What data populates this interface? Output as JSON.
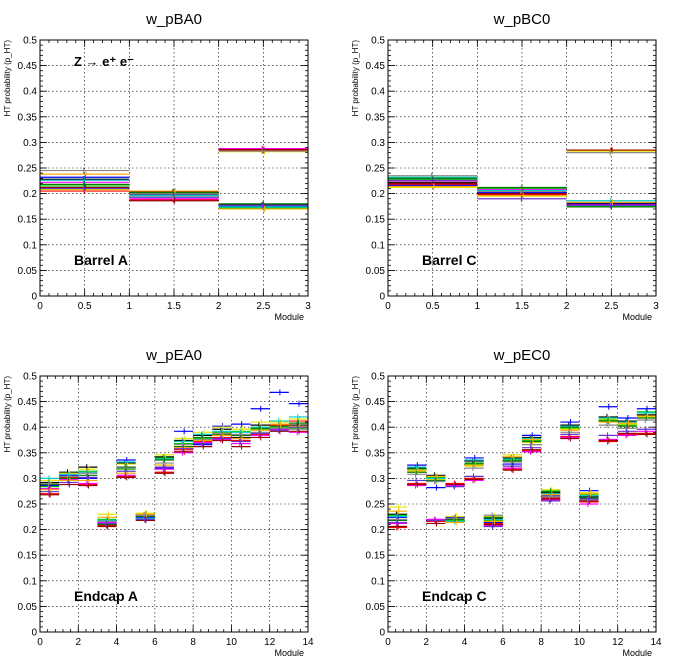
{
  "panels": [
    {
      "title": "w_pBA0",
      "region_label": "Barrel A",
      "annotation": "Z → e⁺ e⁻",
      "xlabel": "Module",
      "ylabel": "HT probability (p_HT)",
      "xlim": [
        0,
        3
      ],
      "ylim": [
        0,
        0.5
      ],
      "x_ticks": [
        0,
        0.5,
        1,
        1.5,
        2,
        2.5,
        3
      ],
      "y_ticks": [
        0,
        0.05,
        0.1,
        0.15,
        0.2,
        0.25,
        0.3,
        0.35,
        0.4,
        0.45,
        0.5
      ]
    },
    {
      "title": "w_pBC0",
      "region_label": "Barrel C",
      "annotation": "",
      "xlabel": "Module",
      "ylabel": "HT probability (p_HT)",
      "xlim": [
        0,
        3
      ],
      "ylim": [
        0,
        0.5
      ],
      "x_ticks": [
        0,
        0.5,
        1,
        1.5,
        2,
        2.5,
        3
      ],
      "y_ticks": [
        0,
        0.05,
        0.1,
        0.15,
        0.2,
        0.25,
        0.3,
        0.35,
        0.4,
        0.45,
        0.5
      ]
    },
    {
      "title": "w_pEA0",
      "region_label": "Endcap A",
      "annotation": "",
      "xlabel": "Module",
      "ylabel": "HT probability (p_HT)",
      "xlim": [
        0,
        14
      ],
      "ylim": [
        0,
        0.5
      ],
      "x_ticks": [
        0,
        2,
        4,
        6,
        8,
        10,
        12,
        14
      ],
      "y_ticks": [
        0,
        0.05,
        0.1,
        0.15,
        0.2,
        0.25,
        0.3,
        0.35,
        0.4,
        0.45,
        0.5
      ]
    },
    {
      "title": "w_pEC0",
      "region_label": "Endcap C",
      "annotation": "",
      "xlabel": "Module",
      "ylabel": "HT probability (p_HT)",
      "xlim": [
        0,
        14
      ],
      "ylim": [
        0,
        0.5
      ],
      "x_ticks": [
        0,
        2,
        4,
        6,
        8,
        10,
        12,
        14
      ],
      "y_ticks": [
        0,
        0.05,
        0.1,
        0.15,
        0.2,
        0.25,
        0.3,
        0.35,
        0.4,
        0.45,
        0.5
      ]
    }
  ],
  "series_colors": [
    "#000000",
    "#ff0000",
    "#00cc00",
    "#0000ff",
    "#e6e600",
    "#ff00ff",
    "#00cccc",
    "#007700",
    "#990000",
    "#ffaa00",
    "#888888",
    "#6633cc"
  ],
  "chart_data": [
    {
      "type": "scatter",
      "title": "w_pBA0",
      "xlabel": "Module",
      "xlim": [
        0,
        3
      ],
      "ylim": [
        0,
        0.5
      ],
      "grid": true,
      "bins": [
        0,
        1,
        2
      ],
      "series": [
        {
          "values": [
            0.228,
            0.203,
            0.178
          ]
        },
        {
          "values": [
            0.205,
            0.188,
            0.285
          ]
        },
        {
          "values": [
            0.215,
            0.198,
            0.172
          ]
        },
        {
          "values": [
            0.232,
            0.193,
            0.176
          ]
        },
        {
          "values": [
            0.208,
            0.2,
            0.282
          ]
        },
        {
          "values": [
            0.222,
            0.19,
            0.288
          ]
        },
        {
          "values": [
            0.226,
            0.196,
            0.174
          ]
        },
        {
          "values": [
            0.218,
            0.202,
            0.18
          ]
        },
        {
          "values": [
            0.212,
            0.186,
            0.286
          ]
        },
        {
          "values": [
            0.238,
            0.205,
            0.17
          ]
        },
        {
          "values": [
            0.245,
            0.194,
            0.283
          ]
        },
        {
          "values": [
            0.21,
            0.199,
            0.177
          ]
        }
      ]
    },
    {
      "type": "scatter",
      "title": "w_pBC0",
      "xlabel": "Module",
      "xlim": [
        0,
        3
      ],
      "ylim": [
        0,
        0.5
      ],
      "grid": true,
      "bins": [
        0,
        1,
        2
      ],
      "series": [
        {
          "values": [
            0.222,
            0.205,
            0.18
          ]
        },
        {
          "values": [
            0.218,
            0.198,
            0.284
          ]
        },
        {
          "values": [
            0.228,
            0.21,
            0.176
          ]
        },
        {
          "values": [
            0.216,
            0.202,
            0.182
          ]
        },
        {
          "values": [
            0.212,
            0.195,
            0.283
          ]
        },
        {
          "values": [
            0.225,
            0.208,
            0.178
          ]
        },
        {
          "values": [
            0.232,
            0.206,
            0.186
          ]
        },
        {
          "values": [
            0.23,
            0.212,
            0.174
          ]
        },
        {
          "values": [
            0.22,
            0.2,
            0.285
          ]
        },
        {
          "values": [
            0.214,
            0.196,
            0.183
          ]
        },
        {
          "values": [
            0.235,
            0.204,
            0.28
          ]
        },
        {
          "values": [
            0.226,
            0.19,
            0.177
          ]
        }
      ]
    },
    {
      "type": "scatter",
      "title": "w_pEA0",
      "xlabel": "Module",
      "xlim": [
        0,
        14
      ],
      "ylim": [
        0,
        0.5
      ],
      "grid": true,
      "bins": [
        0,
        1,
        2,
        3,
        4,
        5,
        6,
        7,
        8,
        9,
        10,
        11,
        12,
        13
      ],
      "series": [
        {
          "values": [
            0.292,
            0.312,
            0.322,
            0.212,
            0.33,
            0.228,
            0.342,
            0.374,
            0.384,
            0.396,
            0.38,
            0.404,
            0.396,
            0.404
          ]
        },
        {
          "values": [
            0.27,
            0.302,
            0.288,
            0.208,
            0.304,
            0.22,
            0.312,
            0.356,
            0.372,
            0.38,
            0.374,
            0.386,
            0.404,
            0.412
          ]
        },
        {
          "values": [
            0.284,
            0.304,
            0.314,
            0.22,
            0.318,
            0.23,
            0.34,
            0.368,
            0.378,
            0.39,
            0.392,
            0.396,
            0.4,
            0.398
          ]
        },
        {
          "values": [
            0.286,
            0.306,
            0.3,
            0.216,
            0.336,
            0.224,
            0.32,
            0.392,
            0.366,
            0.402,
            0.406,
            0.436,
            0.468,
            0.446
          ]
        },
        {
          "values": [
            0.296,
            0.31,
            0.318,
            0.23,
            0.328,
            0.232,
            0.346,
            0.378,
            0.39,
            0.4,
            0.396,
            0.41,
            0.41,
            0.416
          ]
        },
        {
          "values": [
            0.28,
            0.298,
            0.29,
            0.214,
            0.306,
            0.226,
            0.318,
            0.35,
            0.37,
            0.376,
            0.368,
            0.384,
            0.396,
            0.39
          ]
        },
        {
          "values": [
            0.3,
            0.308,
            0.312,
            0.218,
            0.332,
            0.222,
            0.338,
            0.372,
            0.386,
            0.392,
            0.39,
            0.4,
            0.412,
            0.42
          ]
        },
        {
          "values": [
            0.288,
            0.3,
            0.306,
            0.21,
            0.322,
            0.226,
            0.336,
            0.362,
            0.38,
            0.386,
            0.384,
            0.398,
            0.402,
            0.408
          ]
        },
        {
          "values": [
            0.268,
            0.288,
            0.286,
            0.206,
            0.302,
            0.218,
            0.31,
            0.352,
            0.362,
            0.374,
            0.362,
            0.38,
            0.392,
            0.392
          ]
        },
        {
          "values": [
            0.278,
            0.296,
            0.296,
            0.224,
            0.31,
            0.23,
            0.326,
            0.36,
            0.374,
            0.384,
            0.378,
            0.394,
            0.406,
            0.402
          ]
        },
        {
          "values": [
            0.29,
            0.304,
            0.31,
            0.216,
            0.32,
            0.228,
            0.33,
            0.366,
            0.376,
            0.388,
            0.386,
            0.39,
            0.398,
            0.396
          ]
        },
        {
          "values": [
            0.274,
            0.292,
            0.302,
            0.212,
            0.314,
            0.22,
            0.322,
            0.358,
            0.368,
            0.378,
            0.372,
            0.388,
            0.394,
            0.4
          ]
        }
      ]
    },
    {
      "type": "scatter",
      "title": "w_pEC0",
      "xlabel": "Module",
      "xlim": [
        0,
        14
      ],
      "ylim": [
        0,
        0.5
      ],
      "grid": true,
      "bins": [
        0,
        1,
        2,
        3,
        4,
        5,
        6,
        7,
        8,
        9,
        10,
        11,
        12,
        13
      ],
      "series": [
        {
          "values": [
            0.23,
            0.32,
            0.306,
            0.222,
            0.334,
            0.222,
            0.34,
            0.38,
            0.272,
            0.404,
            0.264,
            0.42,
            0.412,
            0.424
          ]
        },
        {
          "values": [
            0.204,
            0.29,
            0.216,
            0.29,
            0.3,
            0.212,
            0.318,
            0.354,
            0.262,
            0.382,
            0.254,
            0.372,
            0.386,
            0.388
          ]
        },
        {
          "values": [
            0.228,
            0.318,
            0.302,
            0.218,
            0.328,
            0.218,
            0.336,
            0.374,
            0.276,
            0.398,
            0.268,
            0.414,
            0.404,
            0.43
          ]
        },
        {
          "values": [
            0.224,
            0.326,
            0.282,
            0.224,
            0.34,
            0.214,
            0.328,
            0.384,
            0.266,
            0.41,
            0.276,
            0.44,
            0.418,
            0.436
          ]
        },
        {
          "values": [
            0.244,
            0.314,
            0.298,
            0.226,
            0.324,
            0.226,
            0.346,
            0.37,
            0.278,
            0.396,
            0.272,
            0.416,
            0.406,
            0.42
          ]
        },
        {
          "values": [
            0.212,
            0.286,
            0.22,
            0.286,
            0.296,
            0.208,
            0.32,
            0.352,
            0.258,
            0.38,
            0.25,
            0.376,
            0.384,
            0.392
          ]
        },
        {
          "values": [
            0.226,
            0.322,
            0.3,
            0.216,
            0.336,
            0.22,
            0.338,
            0.378,
            0.27,
            0.402,
            0.266,
            0.418,
            0.41,
            0.428
          ]
        },
        {
          "values": [
            0.218,
            0.312,
            0.296,
            0.22,
            0.33,
            0.224,
            0.334,
            0.372,
            0.274,
            0.4,
            0.262,
            0.412,
            0.402,
            0.418
          ]
        },
        {
          "values": [
            0.206,
            0.288,
            0.212,
            0.288,
            0.298,
            0.21,
            0.316,
            0.356,
            0.26,
            0.378,
            0.256,
            0.374,
            0.388,
            0.386
          ]
        },
        {
          "values": [
            0.236,
            0.316,
            0.304,
            0.214,
            0.326,
            0.216,
            0.342,
            0.376,
            0.268,
            0.394,
            0.27,
            0.41,
            0.408,
            0.422
          ]
        },
        {
          "values": [
            0.22,
            0.308,
            0.294,
            0.222,
            0.32,
            0.228,
            0.332,
            0.366,
            0.264,
            0.39,
            0.258,
            0.404,
            0.398,
            0.414
          ]
        },
        {
          "values": [
            0.214,
            0.296,
            0.218,
            0.284,
            0.304,
            0.206,
            0.324,
            0.36,
            0.256,
            0.386,
            0.26,
            0.384,
            0.392,
            0.396
          ]
        }
      ]
    }
  ]
}
